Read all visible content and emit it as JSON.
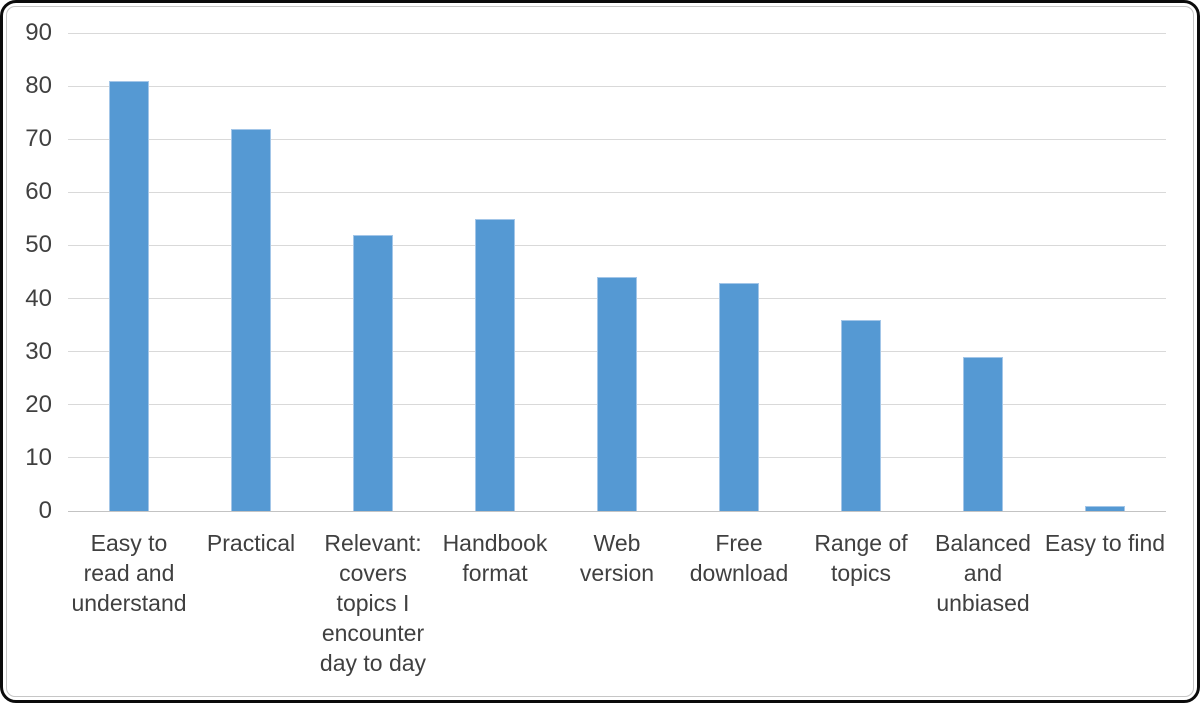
{
  "chart_data": {
    "type": "bar",
    "title": "",
    "xlabel": "",
    "ylabel": "",
    "categories": [
      "Easy to read and understand",
      "Practical",
      "Relevant: covers topics I encounter day to day",
      "Handbook format",
      "Web version",
      "Free download",
      "Range of topics",
      "Balanced and unbiased",
      "Easy to find"
    ],
    "category_label_lines": [
      [
        "Easy to",
        "read and",
        "understand"
      ],
      [
        "Practical"
      ],
      [
        "Relevant:",
        "covers",
        "topics I",
        "encounter",
        "day to day"
      ],
      [
        "Handbook",
        "format"
      ],
      [
        "Web",
        "version"
      ],
      [
        "Free",
        "download"
      ],
      [
        "Range of",
        "topics"
      ],
      [
        "Balanced",
        "and",
        "unbiased"
      ],
      [
        "Easy to find"
      ]
    ],
    "values": [
      81,
      72,
      52,
      55,
      44,
      43,
      36,
      29,
      1
    ],
    "ylim": [
      0,
      90
    ],
    "yticks": [
      0,
      10,
      20,
      30,
      40,
      50,
      60,
      70,
      80,
      90
    ],
    "grid": "horizontal",
    "legend": "none",
    "colors": {
      "bar_fill": "#5599D3",
      "bar_border": "#A3C6E8",
      "gridline": "#D9D9D9",
      "axis_line": "#C3C3C3",
      "label_text": "#404040",
      "outer_frame": "#0B0B0B",
      "inner_frame": "#C6C6C6",
      "background": "#FFFFFF"
    }
  }
}
